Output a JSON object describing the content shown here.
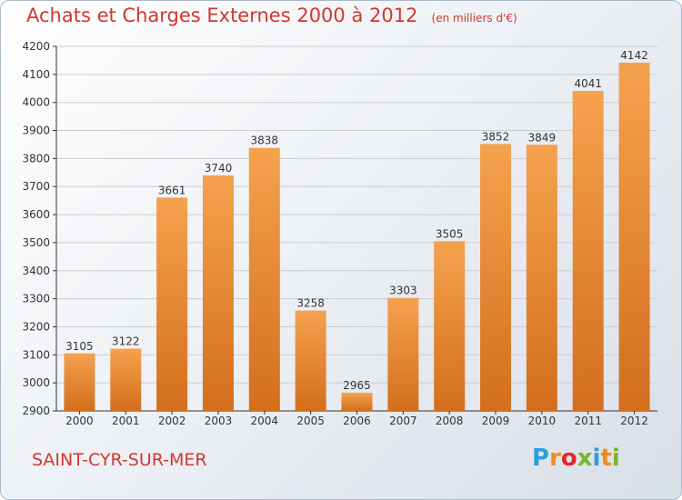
{
  "title": "Achats et Charges Externes 2000 à 2012",
  "subtitle": "(en milliers d'€)",
  "town": "SAINT-CYR-SUR-MER",
  "logo": {
    "letters": [
      "P",
      "r",
      "o",
      "x",
      "i",
      "t",
      "i"
    ],
    "colors": [
      "#2b9fd8",
      "#f08a1a",
      "#e5262d",
      "#7ab52d",
      "#2b9fd8",
      "#f08a1a",
      "#7ab52d"
    ]
  },
  "colors": {
    "bar_light": "#f5a24e",
    "bar_dark": "#d36e1c",
    "text_accent": "#d2372f",
    "axis": "#333333",
    "grid": "#cccccc"
  },
  "chart_data": {
    "type": "bar",
    "categories": [
      "2000",
      "2001",
      "2002",
      "2003",
      "2004",
      "2005",
      "2006",
      "2007",
      "2008",
      "2009",
      "2010",
      "2011",
      "2012"
    ],
    "values": [
      3105,
      3122,
      3661,
      3740,
      3838,
      3258,
      2965,
      3303,
      3505,
      3852,
      3849,
      4041,
      4142
    ],
    "ylim": [
      2900,
      4200
    ],
    "yticks": [
      2900,
      3000,
      3100,
      3200,
      3300,
      3400,
      3500,
      3600,
      3700,
      3800,
      3900,
      4000,
      4100,
      4200
    ],
    "grid": true,
    "data_labels": true
  }
}
